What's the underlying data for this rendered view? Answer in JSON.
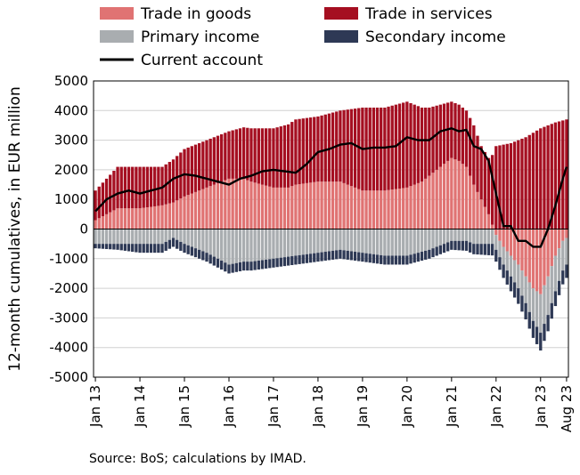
{
  "chart_data": {
    "type": "bar",
    "ylabel": "12-month cumulatives, in EUR million",
    "ylim": [
      -5000,
      5000
    ],
    "yticks": [
      -5000,
      -4000,
      -3000,
      -2000,
      -1000,
      0,
      1000,
      2000,
      3000,
      4000,
      5000
    ],
    "ytick_labels": [
      "-5000",
      "-4000",
      "-3000",
      "-2000",
      "-1000",
      "0",
      "1000",
      "2000",
      "3000",
      "4000",
      "5000"
    ],
    "xtick_labels": [
      "Jan 13",
      "Jan 14",
      "Jan 15",
      "Jan 16",
      "Jan 17",
      "Jan 18",
      "Jan 19",
      "Jan 20",
      "Jan 21",
      "Jan 22",
      "Jan 23",
      "Aug 23"
    ],
    "xtick_index": [
      0,
      12,
      24,
      36,
      48,
      60,
      72,
      84,
      96,
      108,
      120,
      127
    ],
    "grid": true,
    "stacked": true,
    "legend_position": "top",
    "series": [
      {
        "name": "Trade in goods",
        "color": "#e07373",
        "kind": "bar",
        "anchors": [
          [
            0,
            300
          ],
          [
            6,
            700
          ],
          [
            12,
            700
          ],
          [
            18,
            800
          ],
          [
            21,
            900
          ],
          [
            24,
            1100
          ],
          [
            30,
            1400
          ],
          [
            36,
            1700
          ],
          [
            40,
            1700
          ],
          [
            42,
            1600
          ],
          [
            48,
            1400
          ],
          [
            52,
            1400
          ],
          [
            54,
            1500
          ],
          [
            60,
            1600
          ],
          [
            66,
            1600
          ],
          [
            70,
            1400
          ],
          [
            72,
            1300
          ],
          [
            78,
            1300
          ],
          [
            84,
            1400
          ],
          [
            88,
            1600
          ],
          [
            92,
            2000
          ],
          [
            96,
            2400
          ],
          [
            98,
            2300
          ],
          [
            100,
            2100
          ],
          [
            102,
            1500
          ],
          [
            104,
            1000
          ],
          [
            106,
            500
          ],
          [
            108,
            -200
          ],
          [
            110,
            -600
          ],
          [
            114,
            -1200
          ],
          [
            118,
            -2000
          ],
          [
            120,
            -2200
          ],
          [
            122,
            -1600
          ],
          [
            124,
            -900
          ],
          [
            126,
            -400
          ],
          [
            127,
            -300
          ]
        ]
      },
      {
        "name": "Trade in services",
        "color": "#a50f21",
        "kind": "bar",
        "anchors": [
          [
            0,
            1000
          ],
          [
            6,
            1400
          ],
          [
            12,
            1400
          ],
          [
            18,
            1300
          ],
          [
            24,
            1600
          ],
          [
            30,
            1600
          ],
          [
            36,
            1600
          ],
          [
            42,
            1800
          ],
          [
            48,
            2000
          ],
          [
            54,
            2200
          ],
          [
            60,
            2200
          ],
          [
            66,
            2400
          ],
          [
            72,
            2800
          ],
          [
            78,
            2800
          ],
          [
            84,
            2900
          ],
          [
            90,
            2300
          ],
          [
            96,
            1900
          ],
          [
            100,
            1900
          ],
          [
            102,
            2000
          ],
          [
            104,
            1800
          ],
          [
            106,
            1900
          ],
          [
            108,
            2800
          ],
          [
            112,
            2900
          ],
          [
            116,
            3100
          ],
          [
            120,
            3400
          ],
          [
            124,
            3600
          ],
          [
            127,
            3700
          ]
        ]
      },
      {
        "name": "Primary income",
        "color": "#a9adb0",
        "kind": "bar",
        "anchors": [
          [
            0,
            -500
          ],
          [
            6,
            -500
          ],
          [
            12,
            -500
          ],
          [
            18,
            -500
          ],
          [
            21,
            -300
          ],
          [
            24,
            -500
          ],
          [
            30,
            -800
          ],
          [
            36,
            -1200
          ],
          [
            40,
            -1100
          ],
          [
            42,
            -1100
          ],
          [
            48,
            -1000
          ],
          [
            54,
            -900
          ],
          [
            60,
            -800
          ],
          [
            66,
            -700
          ],
          [
            72,
            -800
          ],
          [
            78,
            -900
          ],
          [
            84,
            -900
          ],
          [
            90,
            -700
          ],
          [
            96,
            -400
          ],
          [
            100,
            -400
          ],
          [
            102,
            -500
          ],
          [
            104,
            -500
          ],
          [
            106,
            -500
          ],
          [
            108,
            -500
          ],
          [
            112,
            -700
          ],
          [
            116,
            -900
          ],
          [
            120,
            -1300
          ],
          [
            122,
            -1300
          ],
          [
            124,
            -1200
          ],
          [
            126,
            -1000
          ],
          [
            127,
            -900
          ]
        ]
      },
      {
        "name": "Secondary income",
        "color": "#2e3955",
        "kind": "bar",
        "anchors": [
          [
            0,
            -150
          ],
          [
            6,
            -200
          ],
          [
            12,
            -300
          ],
          [
            18,
            -300
          ],
          [
            24,
            -300
          ],
          [
            30,
            -300
          ],
          [
            36,
            -300
          ],
          [
            42,
            -300
          ],
          [
            48,
            -300
          ],
          [
            54,
            -300
          ],
          [
            60,
            -300
          ],
          [
            66,
            -300
          ],
          [
            72,
            -300
          ],
          [
            78,
            -300
          ],
          [
            84,
            -300
          ],
          [
            90,
            -300
          ],
          [
            96,
            -300
          ],
          [
            102,
            -350
          ],
          [
            108,
            -400
          ],
          [
            112,
            -500
          ],
          [
            116,
            -550
          ],
          [
            120,
            -600
          ],
          [
            124,
            -500
          ],
          [
            127,
            -450
          ]
        ]
      },
      {
        "name": "Current account",
        "color": "#000000",
        "kind": "line",
        "anchors": [
          [
            0,
            600
          ],
          [
            3,
            1000
          ],
          [
            6,
            1200
          ],
          [
            9,
            1300
          ],
          [
            12,
            1200
          ],
          [
            15,
            1300
          ],
          [
            18,
            1400
          ],
          [
            21,
            1700
          ],
          [
            24,
            1850
          ],
          [
            27,
            1800
          ],
          [
            30,
            1700
          ],
          [
            33,
            1600
          ],
          [
            36,
            1500
          ],
          [
            39,
            1700
          ],
          [
            42,
            1800
          ],
          [
            45,
            1950
          ],
          [
            48,
            2000
          ],
          [
            51,
            1950
          ],
          [
            54,
            1900
          ],
          [
            57,
            2200
          ],
          [
            60,
            2600
          ],
          [
            63,
            2700
          ],
          [
            66,
            2850
          ],
          [
            69,
            2900
          ],
          [
            72,
            2700
          ],
          [
            75,
            2750
          ],
          [
            78,
            2750
          ],
          [
            81,
            2800
          ],
          [
            84,
            3100
          ],
          [
            87,
            3000
          ],
          [
            90,
            3000
          ],
          [
            93,
            3300
          ],
          [
            96,
            3400
          ],
          [
            98,
            3300
          ],
          [
            100,
            3350
          ],
          [
            102,
            2800
          ],
          [
            104,
            2700
          ],
          [
            106,
            2300
          ],
          [
            108,
            1200
          ],
          [
            110,
            100
          ],
          [
            112,
            100
          ],
          [
            114,
            -400
          ],
          [
            116,
            -400
          ],
          [
            118,
            -600
          ],
          [
            120,
            -600
          ],
          [
            122,
            0
          ],
          [
            124,
            800
          ],
          [
            126,
            1700
          ],
          [
            127,
            2100
          ]
        ]
      }
    ]
  },
  "source_note": "Source: BoS; calculations by IMAD."
}
